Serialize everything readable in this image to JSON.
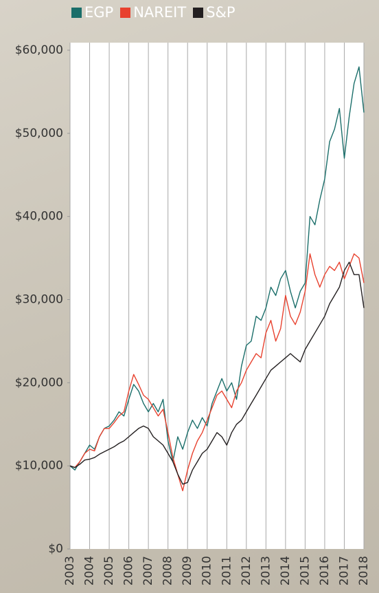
{
  "chart_data": {
    "type": "line",
    "x": [
      2003.0,
      2003.25,
      2003.5,
      2003.75,
      2004.0,
      2004.25,
      2004.5,
      2004.75,
      2005.0,
      2005.25,
      2005.5,
      2005.75,
      2006.0,
      2006.25,
      2006.5,
      2006.75,
      2007.0,
      2007.25,
      2007.5,
      2007.75,
      2008.0,
      2008.25,
      2008.5,
      2008.75,
      2009.0,
      2009.25,
      2009.5,
      2009.75,
      2010.0,
      2010.25,
      2010.5,
      2010.75,
      2011.0,
      2011.25,
      2011.5,
      2011.75,
      2012.0,
      2012.25,
      2012.5,
      2012.75,
      2013.0,
      2013.25,
      2013.5,
      2013.75,
      2014.0,
      2014.25,
      2014.5,
      2014.75,
      2015.0,
      2015.25,
      2015.5,
      2015.75,
      2016.0,
      2016.25,
      2016.5,
      2016.75,
      2017.0,
      2017.25,
      2017.5,
      2017.75,
      2018.0
    ],
    "series": [
      {
        "name": "EGP",
        "color": "#1a6e6a",
        "values": [
          10000,
          9500,
          10500,
          11500,
          12500,
          12000,
          13500,
          14500,
          14800,
          15500,
          16500,
          16000,
          18000,
          19800,
          19000,
          17500,
          16500,
          17500,
          16500,
          18000,
          13000,
          10500,
          13500,
          12000,
          14000,
          15500,
          14500,
          15800,
          14800,
          17500,
          19000,
          20500,
          19000,
          20000,
          18000,
          22000,
          24500,
          25000,
          28000,
          27500,
          29000,
          31500,
          30500,
          32500,
          33500,
          31000,
          29000,
          31000,
          32000,
          40000,
          39000,
          42000,
          44500,
          49000,
          50500,
          53000,
          47000,
          52000,
          56000,
          58000,
          52500
        ]
      },
      {
        "name": "NAREIT",
        "color": "#e8412e",
        "values": [
          10000,
          9800,
          10500,
          11500,
          12000,
          11800,
          13500,
          14500,
          14500,
          15200,
          16000,
          16500,
          19000,
          21000,
          19800,
          18500,
          18000,
          17000,
          16000,
          16800,
          14000,
          11000,
          9000,
          7000,
          9500,
          11500,
          13000,
          14000,
          15500,
          17000,
          18500,
          19000,
          18000,
          17000,
          19000,
          20000,
          21500,
          22500,
          23500,
          23000,
          26000,
          27500,
          25000,
          26500,
          30500,
          28000,
          27000,
          28500,
          31000,
          35500,
          33000,
          31500,
          33000,
          34000,
          33500,
          34500,
          32500,
          34000,
          35500,
          35000,
          32000
        ]
      },
      {
        "name": "S&P",
        "color": "#231f20",
        "values": [
          10000,
          9800,
          10200,
          10700,
          10800,
          11000,
          11400,
          11700,
          12000,
          12300,
          12700,
          13000,
          13500,
          14000,
          14500,
          14800,
          14500,
          13500,
          13000,
          12500,
          11500,
          10500,
          9000,
          7800,
          8000,
          9500,
          10500,
          11500,
          12000,
          13000,
          14000,
          13500,
          12500,
          14000,
          15000,
          15500,
          16500,
          17500,
          18500,
          19500,
          20500,
          21500,
          22000,
          22500,
          23000,
          23500,
          23000,
          22500,
          24000,
          25000,
          26000,
          27000,
          28000,
          29500,
          30500,
          31500,
          33500,
          34500,
          33000,
          33000,
          29000
        ]
      }
    ],
    "xlim": [
      2003,
      2018
    ],
    "xticks": [
      2003,
      2004,
      2005,
      2006,
      2007,
      2008,
      2009,
      2010,
      2011,
      2012,
      2013,
      2014,
      2015,
      2016,
      2017,
      2018
    ],
    "ylim": [
      0,
      60000
    ],
    "yticks": [
      {
        "value": 0,
        "label": "$0"
      },
      {
        "value": 10000,
        "label": "$10,000"
      },
      {
        "value": 20000,
        "label": "$20,000"
      },
      {
        "value": 30000,
        "label": "$30,000"
      },
      {
        "value": 40000,
        "label": "$40,000"
      },
      {
        "value": 50000,
        "label": "$50,000"
      },
      {
        "value": 60000,
        "label": "$60,000"
      }
    ],
    "grid": true
  }
}
